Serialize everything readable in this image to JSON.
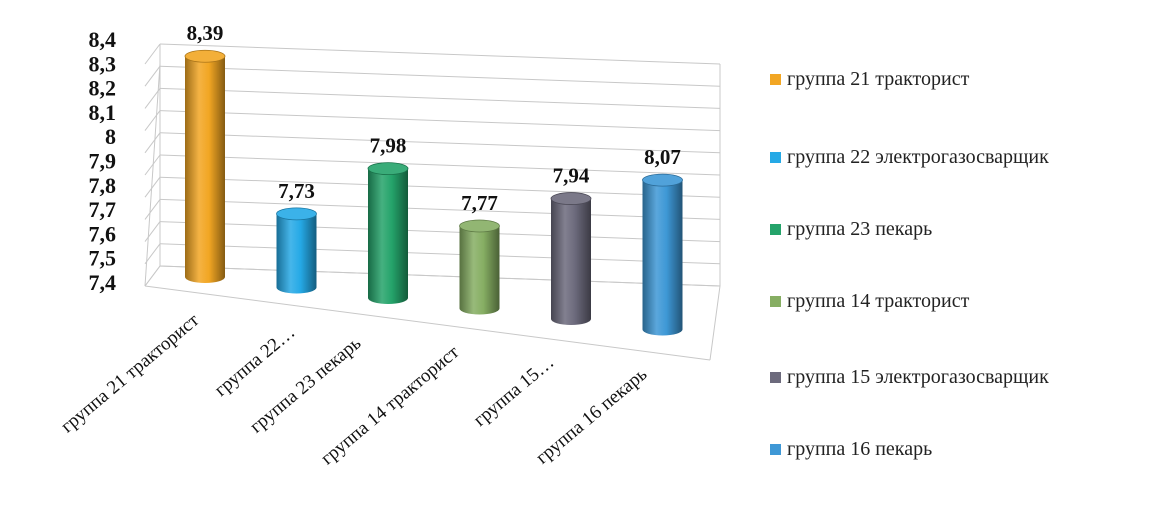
{
  "chart_data": {
    "type": "bar",
    "style": "3d-cylinder",
    "categories": [
      "группа 21 тракторист",
      "группа 22 электрогазосварщик",
      "группа 23 пекарь",
      "группа 14 тракторист",
      "группа 15 электрогазосварщик",
      "группа 16 пекарь"
    ],
    "tick_labels": [
      "группа 21 тракторист",
      "группа 22…",
      "группа 23 пекарь",
      "группа 14 тракторист",
      "группа 15…",
      "группа 16 пекарь"
    ],
    "values": [
      8.39,
      7.73,
      7.98,
      7.77,
      7.94,
      8.07
    ],
    "value_labels": [
      "8,39",
      "7,73",
      "7,98",
      "7,77",
      "7,94",
      "8,07"
    ],
    "colors": [
      "#F2A623",
      "#25A9E6",
      "#24A36A",
      "#86AE63",
      "#6C6A7C",
      "#3E98D6"
    ],
    "ylim": [
      7.4,
      8.4
    ],
    "yticks": [
      "7,4",
      "7,5",
      "7,6",
      "7,7",
      "7,8",
      "7,9",
      "8",
      "8,1",
      "8,2",
      "8,3",
      "8,4"
    ],
    "grid": true,
    "legend_position": "right",
    "legend": [
      "группа 21 тракторист",
      "группа 22 электрогазосварщик",
      "группа 23 пекарь",
      "группа 14 тракторист",
      "группа 15 электрогазосварщик",
      "группа 16 пекарь"
    ]
  }
}
